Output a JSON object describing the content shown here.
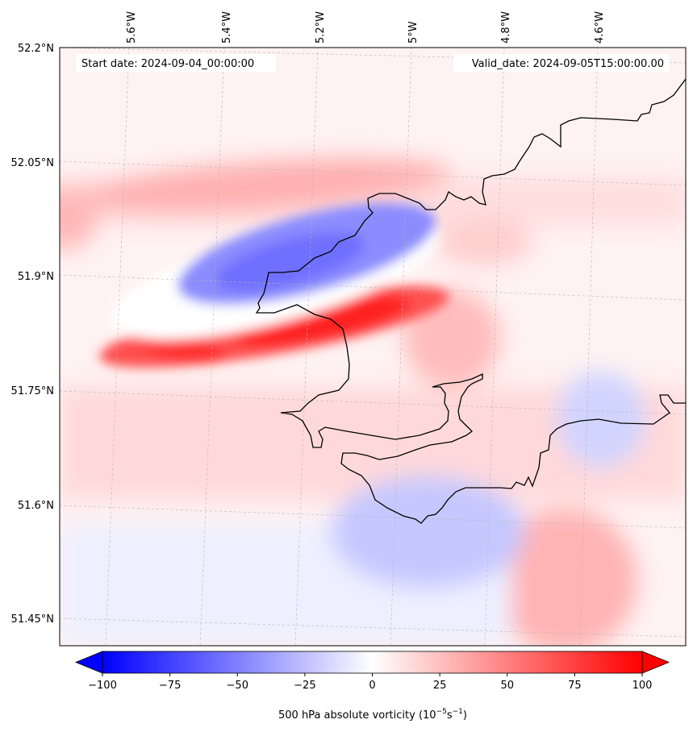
{
  "map": {
    "start_date_text": "Start date: 2024-09-04_00:00:00",
    "valid_date_text": "Valid_date: 2024-09-05T15:00:00.00",
    "lon_labels": [
      "5.6°W",
      "5.4°W",
      "5.2°W",
      "5°W",
      "4.8°W",
      "4.6°W"
    ],
    "lat_labels": [
      "52.2°N",
      "52.05°N",
      "51.9°N",
      "51.75°N",
      "51.6°N",
      "51.45°N"
    ],
    "coastline_color": "#000000",
    "gridline_style": "dashed-grey"
  },
  "colorbar": {
    "title": "500 hPa absolute vorticity (10",
    "title_exp1": "−5",
    "title_mid": "s",
    "title_exp2": "−1",
    "title_end": ")",
    "ticks": [
      "−100",
      "−75",
      "−50",
      "−25",
      "0",
      "25",
      "50",
      "75",
      "100"
    ],
    "tick_values": [
      -100,
      -75,
      -50,
      -25,
      0,
      25,
      50,
      75,
      100
    ],
    "min": -100,
    "max": 100,
    "extend": "both",
    "low_color": "#0000ff",
    "mid_color": "#ffffff",
    "high_color": "#ff0000"
  },
  "chart_data": {
    "type": "heatmap",
    "variable": "500 hPa absolute vorticity",
    "units": "10^-5 s^-1",
    "colormap": "bwr",
    "vmin": -100,
    "vmax": 100,
    "lon_range": [
      -5.75,
      -4.45
    ],
    "lat_range": [
      51.42,
      52.2
    ],
    "features": [
      {
        "lon": -5.28,
        "lat": 51.93,
        "value": -55
      },
      {
        "lon": -5.5,
        "lat": 51.8,
        "value": 85
      },
      {
        "lon": -5.05,
        "lat": 51.85,
        "value": 90
      },
      {
        "lon": -4.95,
        "lat": 51.53,
        "value": -30
      },
      {
        "lon": -4.58,
        "lat": 51.7,
        "value": -25
      },
      {
        "lon": -4.65,
        "lat": 51.52,
        "value": 40
      },
      {
        "lon": -4.85,
        "lat": 51.82,
        "value": 45
      },
      {
        "lon": -5.25,
        "lat": 52.03,
        "value": 40
      }
    ]
  }
}
